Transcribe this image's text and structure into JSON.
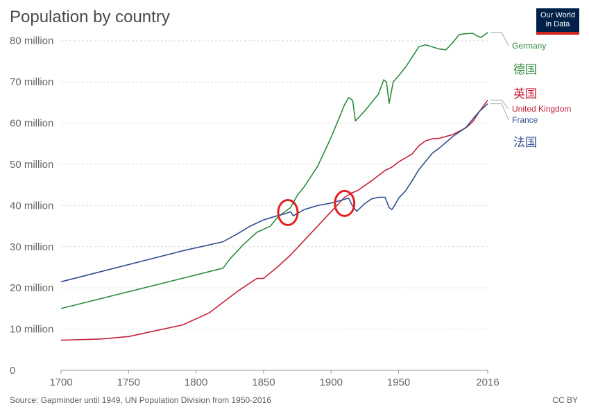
{
  "page": {
    "title": "Population by country",
    "logo_line1": "Our World",
    "logo_line2": "in Data",
    "source": "Source: Gapminder until 1949, UN Population Division from 1950-2016",
    "license": "CC BY"
  },
  "chart_data": {
    "type": "line",
    "title": "Population by country",
    "xlabel": "",
    "ylabel": "",
    "xlim": [
      1700,
      2016
    ],
    "ylim": [
      0,
      85
    ],
    "x_ticks": [
      1700,
      1750,
      1800,
      1850,
      1900,
      1950,
      2016
    ],
    "y_ticks": [
      {
        "value": 0,
        "label": "0"
      },
      {
        "value": 10,
        "label": "10 million"
      },
      {
        "value": 20,
        "label": "20 million"
      },
      {
        "value": 30,
        "label": "30 million"
      },
      {
        "value": 40,
        "label": "40 million"
      },
      {
        "value": 50,
        "label": "50 million"
      },
      {
        "value": 60,
        "label": "60 million"
      },
      {
        "value": 70,
        "label": "70 million"
      },
      {
        "value": 80,
        "label": "80 million"
      }
    ],
    "grid": true,
    "units": "million",
    "series": [
      {
        "name": "Germany",
        "annotation": "德国",
        "color": "#2e8b3e",
        "points": [
          [
            1700,
            15
          ],
          [
            1820,
            24.8
          ],
          [
            1825,
            27
          ],
          [
            1835,
            30.5
          ],
          [
            1845,
            33.5
          ],
          [
            1855,
            35
          ],
          [
            1860,
            37
          ],
          [
            1865,
            38.3
          ],
          [
            1870,
            39.5
          ],
          [
            1875,
            42.5
          ],
          [
            1880,
            44.5
          ],
          [
            1885,
            47
          ],
          [
            1890,
            49.5
          ],
          [
            1895,
            53
          ],
          [
            1900,
            56.5
          ],
          [
            1905,
            60.5
          ],
          [
            1910,
            64.5
          ],
          [
            1913,
            66.2
          ],
          [
            1916,
            65.5
          ],
          [
            1918,
            60.5
          ],
          [
            1925,
            63
          ],
          [
            1935,
            67
          ],
          [
            1939,
            70.5
          ],
          [
            1941,
            70
          ],
          [
            1943,
            64.8
          ],
          [
            1946,
            70
          ],
          [
            1950,
            71.5
          ],
          [
            1955,
            73.5
          ],
          [
            1960,
            76
          ],
          [
            1965,
            78.5
          ],
          [
            1970,
            79
          ],
          [
            1975,
            78.5
          ],
          [
            1980,
            78
          ],
          [
            1985,
            77.8
          ],
          [
            1990,
            79.5
          ],
          [
            1995,
            81.5
          ],
          [
            2000,
            81.7
          ],
          [
            2005,
            81.8
          ],
          [
            2008,
            81.2
          ],
          [
            2011,
            80.8
          ],
          [
            2016,
            82
          ]
        ]
      },
      {
        "name": "United Kingdom",
        "annotation": "英国",
        "color": "#c41f3a",
        "points": [
          [
            1700,
            7.3
          ],
          [
            1730,
            7.6
          ],
          [
            1750,
            8.2
          ],
          [
            1790,
            11
          ],
          [
            1810,
            14
          ],
          [
            1830,
            19
          ],
          [
            1845,
            22.3
          ],
          [
            1850,
            22.3
          ],
          [
            1860,
            25
          ],
          [
            1870,
            28
          ],
          [
            1880,
            31.5
          ],
          [
            1890,
            35
          ],
          [
            1900,
            38.5
          ],
          [
            1910,
            42
          ],
          [
            1915,
            43
          ],
          [
            1920,
            43.7
          ],
          [
            1930,
            46
          ],
          [
            1940,
            48.5
          ],
          [
            1945,
            49.3
          ],
          [
            1950,
            50.6
          ],
          [
            1960,
            52.5
          ],
          [
            1965,
            54.5
          ],
          [
            1970,
            55.7
          ],
          [
            1975,
            56.2
          ],
          [
            1980,
            56.3
          ],
          [
            1990,
            57.2
          ],
          [
            2000,
            58.9
          ],
          [
            2005,
            60.4
          ],
          [
            2010,
            62.9
          ],
          [
            2016,
            65.6
          ]
        ]
      },
      {
        "name": "France",
        "annotation": "法国",
        "color": "#2f4d8f",
        "points": [
          [
            1700,
            21.5
          ],
          [
            1790,
            29
          ],
          [
            1820,
            31.2
          ],
          [
            1830,
            33
          ],
          [
            1840,
            35
          ],
          [
            1850,
            36.5
          ],
          [
            1860,
            37.5
          ],
          [
            1866,
            38
          ],
          [
            1870,
            38.5
          ],
          [
            1872,
            37.5
          ],
          [
            1880,
            39
          ],
          [
            1890,
            40
          ],
          [
            1900,
            40.6
          ],
          [
            1910,
            41.5
          ],
          [
            1913,
            41.8
          ],
          [
            1916,
            39.8
          ],
          [
            1919,
            38.6
          ],
          [
            1925,
            40.5
          ],
          [
            1930,
            41.6
          ],
          [
            1935,
            42
          ],
          [
            1940,
            42
          ],
          [
            1943,
            39.5
          ],
          [
            1945,
            39
          ],
          [
            1947,
            40
          ],
          [
            1950,
            41.8
          ],
          [
            1955,
            43.5
          ],
          [
            1960,
            46
          ],
          [
            1965,
            48.7
          ],
          [
            1970,
            50.7
          ],
          [
            1975,
            52.7
          ],
          [
            1980,
            53.9
          ],
          [
            1990,
            56.7
          ],
          [
            2000,
            59
          ],
          [
            2005,
            61
          ],
          [
            2010,
            62.9
          ],
          [
            2016,
            64.7
          ]
        ]
      }
    ],
    "annotations": [
      {
        "type": "circle",
        "x": 1868,
        "y": 38.3,
        "color": "#e02020"
      },
      {
        "type": "circle",
        "x": 1910,
        "y": 40.5,
        "color": "#e02020"
      }
    ]
  }
}
